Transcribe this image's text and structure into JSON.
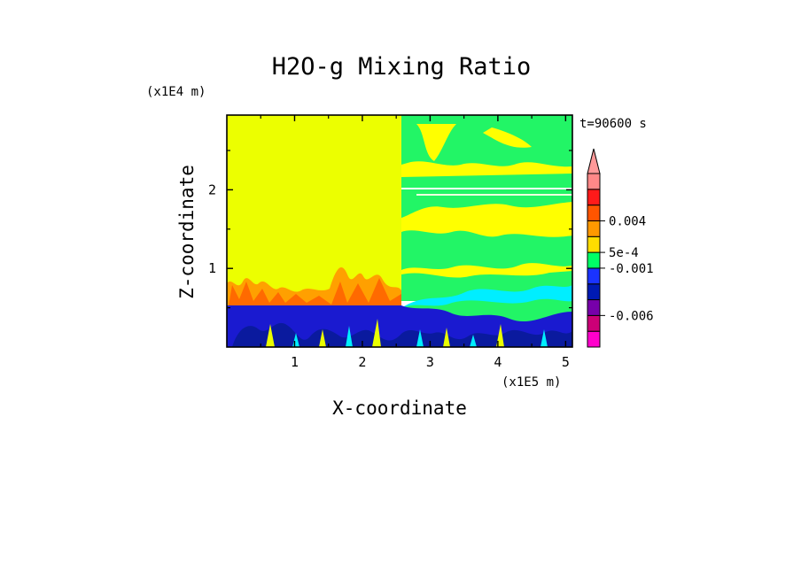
{
  "chart_data": {
    "type": "heatmap",
    "title": "H2O-g Mixing Ratio",
    "xlabel": "X-coordinate",
    "ylabel": "Z-coordinate",
    "x_unit": "(x1E5 m)",
    "y_unit": "(x1E4 m)",
    "time_label": "t=90600 s",
    "xlim": [
      0,
      5.1
    ],
    "ylim": [
      0,
      2.95
    ],
    "x_ticks": [
      {
        "value": 1,
        "label": "1"
      },
      {
        "value": 2,
        "label": "2"
      },
      {
        "value": 3,
        "label": "3"
      },
      {
        "value": 4,
        "label": "4"
      },
      {
        "value": 5,
        "label": "5"
      }
    ],
    "y_ticks": [
      {
        "value": 1,
        "label": "1"
      },
      {
        "value": 2,
        "label": "2"
      }
    ],
    "colorbar": {
      "labels": [
        {
          "level": 8,
          "text": "0.004"
        },
        {
          "level": 6,
          "text": "5e-4"
        },
        {
          "level": 5,
          "text": "-0.001"
        },
        {
          "level": 2,
          "text": "-0.006"
        }
      ],
      "colors": [
        "#ff00cc",
        "#cc0077",
        "#7700aa",
        "#001ab3",
        "#1a33ff",
        "#00ff66",
        "#ffdd00",
        "#ff9900",
        "#ff5500",
        "#ff1a1a",
        "#ff8888"
      ],
      "extend_top": true
    }
  }
}
